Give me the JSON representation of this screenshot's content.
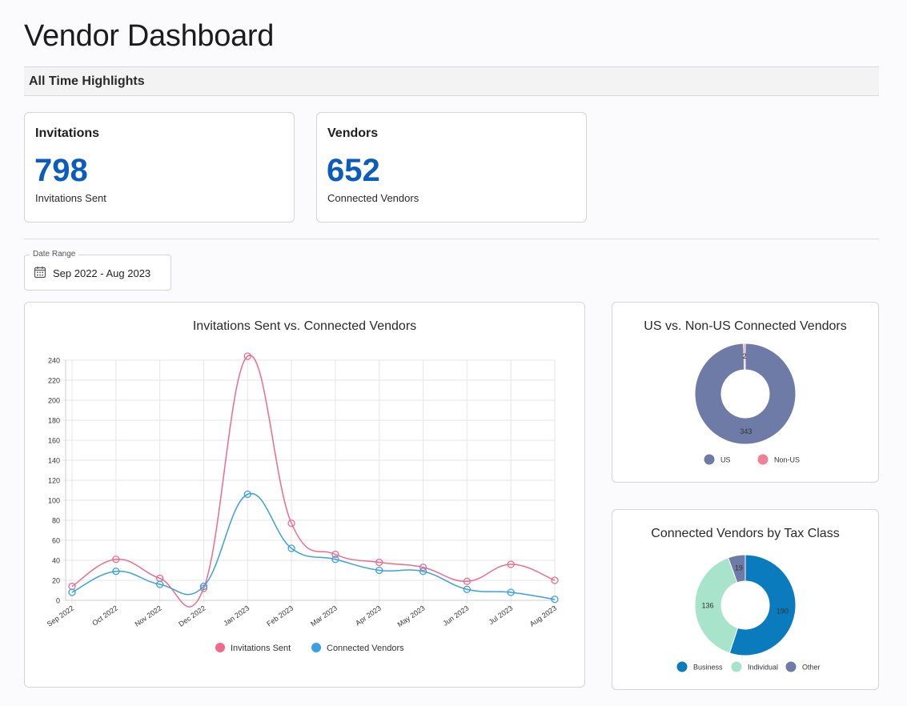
{
  "page": {
    "title": "Vendor Dashboard"
  },
  "highlights": {
    "label": "All Time Highlights"
  },
  "cards": [
    {
      "title": "Invitations",
      "value": "798",
      "caption": "Invitations Sent"
    },
    {
      "title": "Vendors",
      "value": "652",
      "caption": "Connected Vendors"
    }
  ],
  "date_range": {
    "label": "Date Range",
    "value": "Sep 2022 - Aug 2023",
    "icon": "calendar-icon"
  },
  "colors": {
    "accent": "#0b5cbd",
    "invitations": "#f06a8a",
    "connected": "#3aa0e4",
    "us": "#6e7ba6",
    "non_us": "#f27e97",
    "business": "#0a7bbd",
    "individual": "#a8e3cc",
    "other": "#6e7ba6"
  },
  "chart_data": [
    {
      "type": "line",
      "title": "Invitations Sent vs. Connected Vendors",
      "categories": [
        "Sep 2022",
        "Oct 2022",
        "Nov 2022",
        "Dec 2022",
        "Jan 2023",
        "Feb 2023",
        "Mar 2023",
        "Apr 2023",
        "May 2023",
        "Jun 2023",
        "Jul 2023",
        "Aug 2023"
      ],
      "series": [
        {
          "name": "Invitations Sent",
          "color": "#f06a8a",
          "values": [
            14,
            41,
            22,
            12,
            244,
            77,
            46,
            38,
            33,
            19,
            36,
            20
          ]
        },
        {
          "name": "Connected Vendors",
          "color": "#3aa0e4",
          "values": [
            8,
            29,
            16,
            14,
            106,
            52,
            41,
            30,
            29,
            11,
            8,
            1
          ]
        }
      ],
      "ylim": [
        0,
        240
      ],
      "yticks": [
        0,
        20,
        40,
        60,
        80,
        100,
        120,
        140,
        160,
        180,
        200,
        220,
        240
      ],
      "grid": true,
      "legend": "bottom"
    },
    {
      "type": "pie",
      "title": "US vs. Non-US Connected Vendors",
      "labels": [
        "US",
        "Non-US"
      ],
      "values": [
        343,
        2
      ],
      "colors": [
        "#6e7ba6",
        "#f27e97"
      ],
      "legend": "bottom"
    },
    {
      "type": "pie",
      "title": "Connected Vendors by Tax Class",
      "labels": [
        "Business",
        "Individual",
        "Other"
      ],
      "values": [
        190,
        136,
        19
      ],
      "colors": [
        "#0a7bbd",
        "#a8e3cc",
        "#6e7ba6"
      ],
      "legend": "bottom"
    }
  ]
}
